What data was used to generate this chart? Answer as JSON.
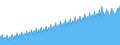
{
  "values": [
    72,
    68,
    75,
    65,
    70,
    67,
    74,
    63,
    71,
    68,
    76,
    66,
    73,
    70,
    78,
    68,
    75,
    72,
    80,
    70,
    77,
    74,
    82,
    72,
    80,
    76,
    84,
    74,
    82,
    78,
    87,
    76,
    84,
    80,
    89,
    78,
    86,
    82,
    91,
    80,
    88,
    85,
    94,
    82,
    91,
    88,
    97,
    85,
    93,
    90,
    100,
    88,
    96,
    93,
    103,
    91,
    99,
    95,
    105,
    93,
    101,
    98,
    108,
    95,
    104,
    100,
    110,
    98,
    107,
    103,
    114,
    101,
    109,
    105,
    116,
    103,
    112,
    108,
    119,
    106,
    115,
    110,
    122,
    108,
    128,
    118,
    110,
    115,
    122,
    118,
    108,
    114,
    124,
    120,
    116,
    112,
    118,
    125,
    122,
    128
  ],
  "fill_color": "#5bb8f5",
  "line_color": "#3aa0e0",
  "background_color": "#ffffff",
  "ylim_min": 55,
  "ylim_max": 140
}
